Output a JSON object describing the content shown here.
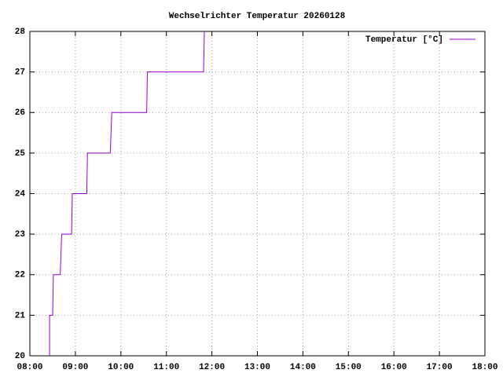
{
  "chart_data": {
    "type": "line",
    "title": "Wechselrichter Temperatur 20260128",
    "x": [
      "08:26",
      "08:26",
      "08:30",
      "08:31",
      "08:40",
      "08:42",
      "08:55",
      "08:56",
      "09:15",
      "09:16",
      "09:46",
      "09:48",
      "10:34",
      "10:35",
      "11:49",
      "11:50"
    ],
    "series": [
      {
        "name": "Temperatur [°C]",
        "color": "#9400d3",
        "values": [
          20,
          21,
          21,
          22,
          22,
          23,
          23,
          24,
          24,
          25,
          25,
          26,
          26,
          27,
          27,
          28
        ]
      }
    ],
    "xlim": [
      "08:00",
      "18:00"
    ],
    "xticks": [
      "08:00",
      "09:00",
      "10:00",
      "11:00",
      "12:00",
      "13:00",
      "14:00",
      "15:00",
      "16:00",
      "17:00",
      "18:00"
    ],
    "ylim": [
      20,
      28
    ],
    "yticks": [
      20,
      21,
      22,
      23,
      24,
      25,
      26,
      27,
      28
    ],
    "grid": true,
    "legend": "top-right"
  }
}
